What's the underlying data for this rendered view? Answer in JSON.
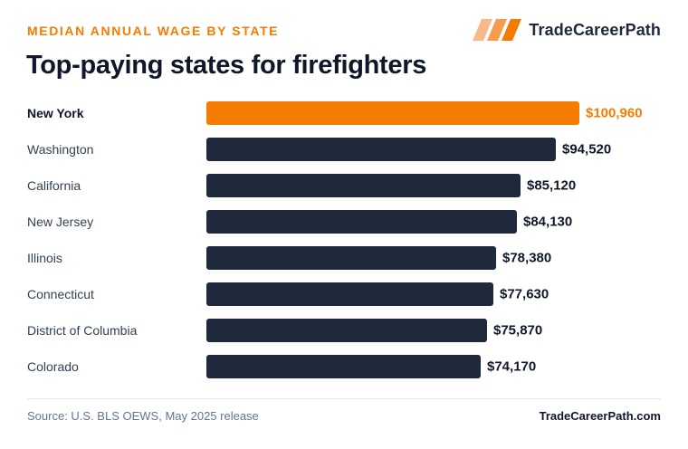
{
  "header": {
    "eyebrow": "MEDIAN ANNUAL WAGE BY STATE",
    "title": "Top-paying states for firefighters",
    "brand": "TradeCareerPath",
    "brand_logo_icon": "three-slanted-bars-logo-icon"
  },
  "footer": {
    "source": "Source: U.S. BLS OEWS, May 2025 release",
    "site": "TradeCareerPath.com"
  },
  "colors": {
    "highlight": "#f57c00",
    "bar": "#1e293b",
    "highlight_label": "#f57c00",
    "value_label": "#0f172a",
    "category_label": "#334155"
  },
  "chart_data": {
    "type": "bar",
    "orientation": "horizontal",
    "categories": [
      "New York",
      "Washington",
      "California",
      "New Jersey",
      "Illinois",
      "Connecticut",
      "District of Columbia",
      "Colorado"
    ],
    "values": [
      100960,
      94520,
      85120,
      84130,
      78380,
      77630,
      75870,
      74170
    ],
    "value_labels": [
      "$100,960",
      "$94,520",
      "$85,120",
      "$84,130",
      "$78,380",
      "$77,630",
      "$75,870",
      "$74,170"
    ],
    "highlight_index": 0,
    "xlim": [
      0,
      100960
    ],
    "grid": false,
    "legend": "none"
  }
}
